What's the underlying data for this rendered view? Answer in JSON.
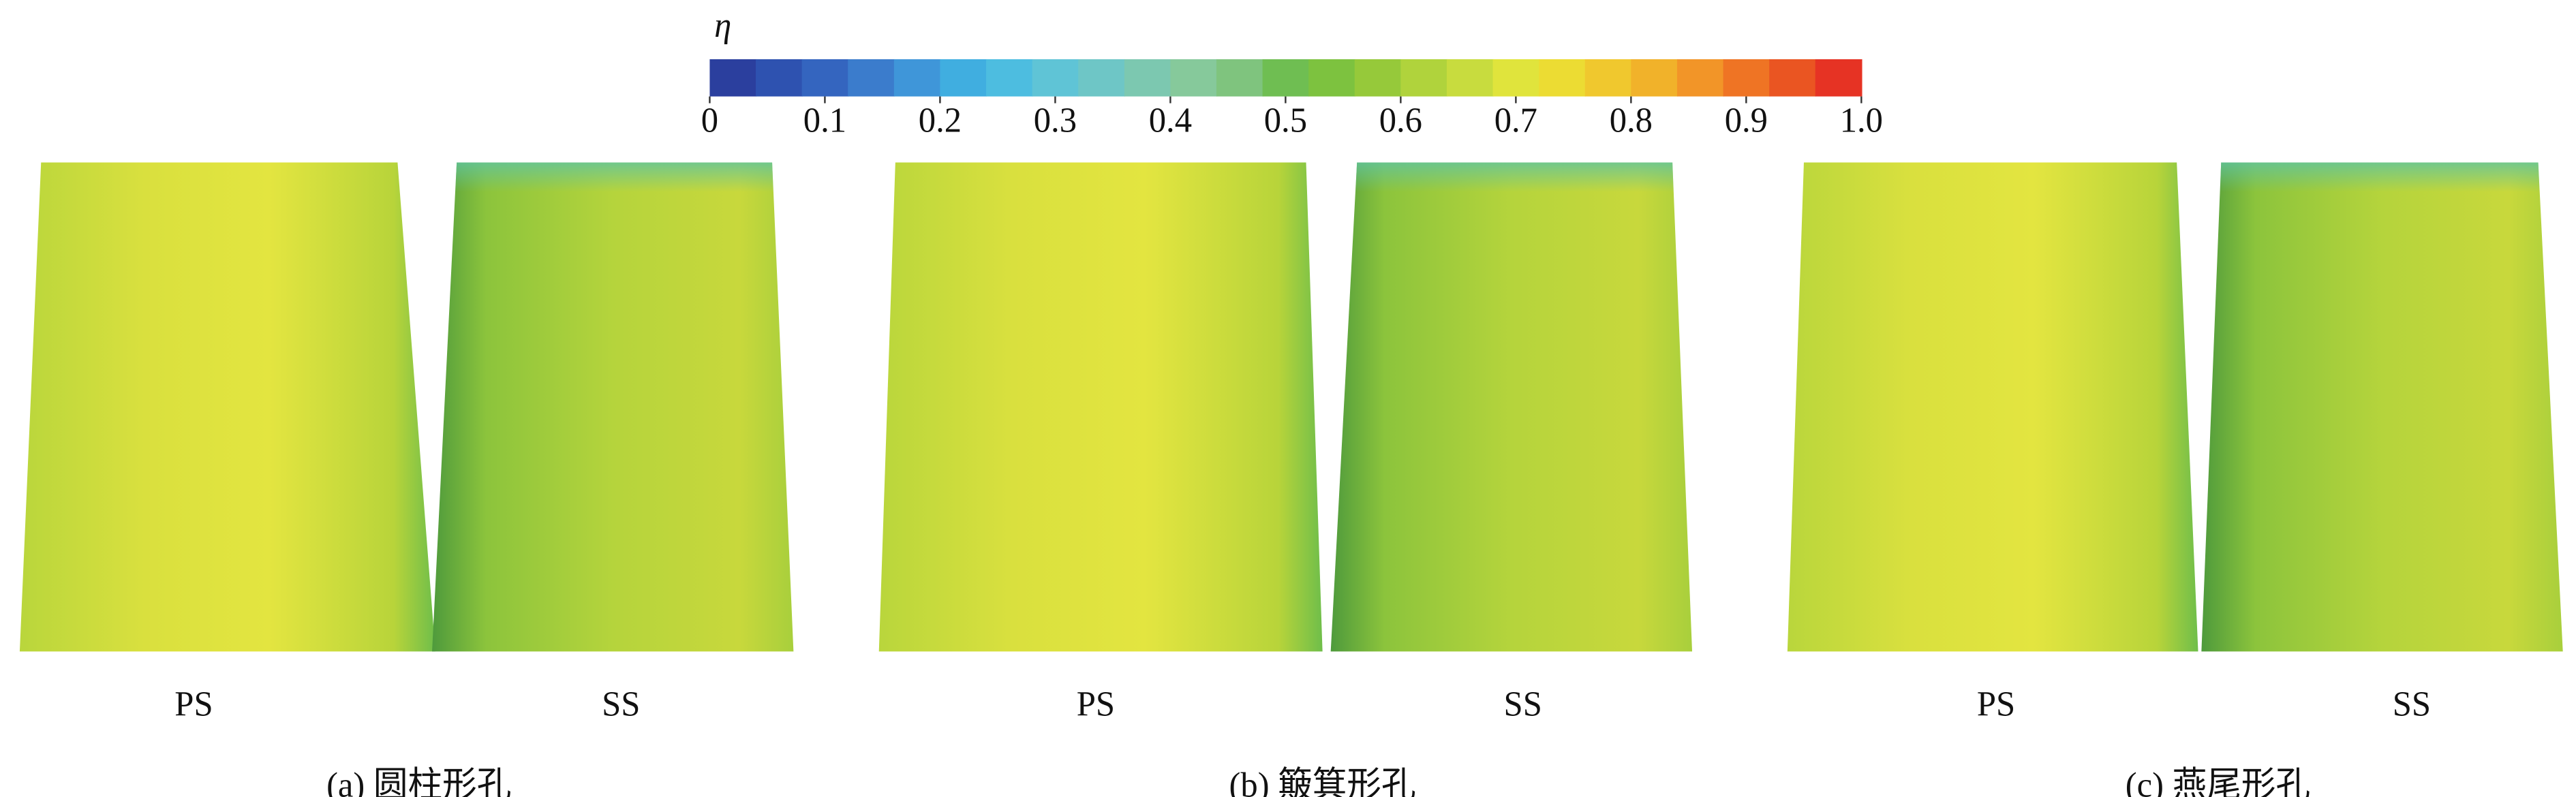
{
  "colorbar": {
    "label": "η",
    "ticks": [
      0,
      0.1,
      0.2,
      0.3,
      0.4,
      0.5,
      0.6,
      0.7,
      0.8,
      0.9,
      {
        "value": 1,
        "label": "1.0"
      }
    ],
    "range": [
      0,
      1
    ],
    "colors": [
      "#2b3f9e",
      "#2e52b0",
      "#3465bf",
      "#3b7ccc",
      "#3f96d9",
      "#40aee0",
      "#4dbde0",
      "#5fc4d6",
      "#6ec6c6",
      "#7cc8b0",
      "#86c99b",
      "#7fc47e",
      "#6fbe52",
      "#7dc23f",
      "#96c93a",
      "#b0d33c",
      "#c8dc3e",
      "#e0e43c",
      "#ecdc33",
      "#f0c82e",
      "#f1b22a",
      "#f29528",
      "#ef7424",
      "#ea5522",
      "#e63324"
    ]
  },
  "panels": [
    {
      "caption": "(a) 圆柱形孔",
      "views": [
        "PS",
        "SS"
      ]
    },
    {
      "caption": "(b) 簸箕形孔",
      "views": [
        "PS",
        "SS"
      ]
    },
    {
      "caption": "(c) 燕尾形孔",
      "views": [
        "PS",
        "SS"
      ]
    }
  ]
}
